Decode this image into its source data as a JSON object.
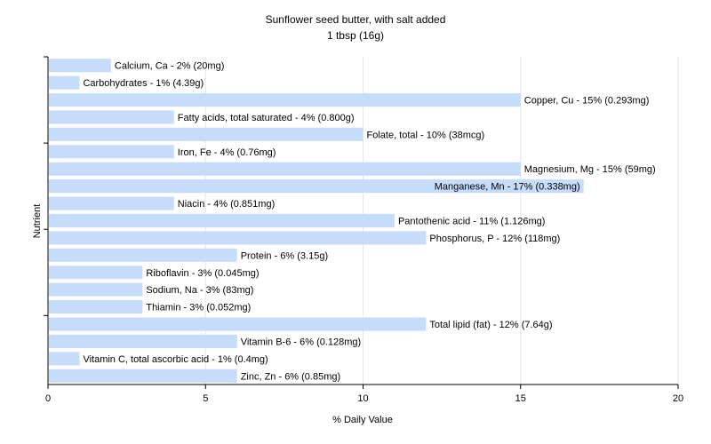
{
  "chart_data": {
    "type": "bar",
    "orientation": "horizontal",
    "title": "Sunflower seed butter, with salt added",
    "subtitle": "1 tbsp (16g)",
    "xlabel": "% Daily Value",
    "ylabel": "Nutrient",
    "xlim": [
      0,
      20
    ],
    "xticks": [
      "0",
      "5",
      "10",
      "15",
      "20"
    ],
    "grid": true,
    "bar_color": "#c6dcfb",
    "categories": [
      "Calcium, Ca",
      "Carbohydrates",
      "Copper, Cu",
      "Fatty acids, total saturated",
      "Folate, total",
      "Iron, Fe",
      "Magnesium, Mg",
      "Manganese, Mn",
      "Niacin",
      "Pantothenic acid",
      "Phosphorus, P",
      "Protein",
      "Riboflavin",
      "Sodium, Na",
      "Thiamin",
      "Total lipid (fat)",
      "Vitamin B-6",
      "Vitamin C, total ascorbic acid",
      "Zinc, Zn"
    ],
    "values": [
      2,
      1,
      15,
      4,
      10,
      4,
      15,
      17,
      4,
      11,
      12,
      6,
      3,
      3,
      3,
      12,
      6,
      1,
      6
    ],
    "labels": [
      "Calcium, Ca - 2% (20mg)",
      "Carbohydrates - 1% (4.39g)",
      "Copper, Cu - 15% (0.293mg)",
      "Fatty acids, total saturated - 4% (0.800g)",
      "Folate, total - 10% (38mcg)",
      "Iron, Fe - 4% (0.76mg)",
      "Magnesium, Mg - 15% (59mg)",
      "Manganese, Mn - 17% (0.338mg)",
      "Niacin - 4% (0.851mg)",
      "Pantothenic acid - 11% (1.126mg)",
      "Phosphorus, P - 12% (118mg)",
      "Protein - 6% (3.15g)",
      "Riboflavin - 3% (0.045mg)",
      "Sodium, Na - 3% (83mg)",
      "Thiamin - 3% (0.052mg)",
      "Total lipid (fat) - 12% (7.64g)",
      "Vitamin B-6 - 6% (0.128mg)",
      "Vitamin C, total ascorbic acid - 1% (0.4mg)",
      "Zinc, Zn - 6% (0.85mg)"
    ]
  }
}
